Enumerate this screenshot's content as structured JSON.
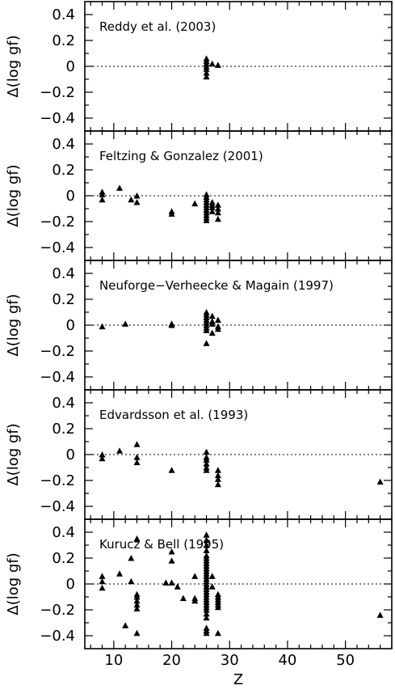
{
  "chart_data": [
    {
      "type": "scatter",
      "title": "Reddy et al. (2003)",
      "ylabel": "Δ(log gf)",
      "xlabel": "",
      "xlim": [
        5,
        58
      ],
      "ylim": [
        -0.5,
        0.5
      ],
      "yticks": [
        "0.4",
        "0.2",
        "0",
        "−0.2",
        "−0.4"
      ],
      "xticks": [],
      "zero_line": "dotted",
      "points": [
        [
          26,
          0.06
        ],
        [
          26,
          0.04
        ],
        [
          26,
          0.02
        ],
        [
          26,
          0.0
        ],
        [
          26,
          -0.02
        ],
        [
          26,
          -0.05
        ],
        [
          26,
          -0.08
        ],
        [
          27,
          0.02
        ],
        [
          28,
          0.01
        ]
      ]
    },
    {
      "type": "scatter",
      "title": "Feltzing & Gonzalez (2001)",
      "ylabel": "Δ(log gf)",
      "xlabel": "",
      "xlim": [
        5,
        58
      ],
      "ylim": [
        -0.5,
        0.5
      ],
      "yticks": [
        "0.4",
        "0.2",
        "0",
        "−0.2",
        "−0.4"
      ],
      "xticks": [],
      "zero_line": "dotted",
      "points": [
        [
          8,
          0.03
        ],
        [
          8,
          0.01
        ],
        [
          8,
          -0.03
        ],
        [
          11,
          0.06
        ],
        [
          13,
          -0.03
        ],
        [
          14,
          0.0
        ],
        [
          14,
          -0.05
        ],
        [
          20,
          -0.12
        ],
        [
          20,
          -0.14
        ],
        [
          24,
          -0.06
        ],
        [
          26,
          0.01
        ],
        [
          26,
          -0.01
        ],
        [
          26,
          -0.03
        ],
        [
          26,
          -0.05
        ],
        [
          26,
          -0.07
        ],
        [
          26,
          -0.09
        ],
        [
          26,
          -0.11
        ],
        [
          26,
          -0.13
        ],
        [
          26,
          -0.15
        ],
        [
          26,
          -0.17
        ],
        [
          26,
          -0.19
        ],
        [
          27,
          -0.05
        ],
        [
          27,
          -0.07
        ],
        [
          27,
          -0.09
        ],
        [
          27,
          -0.12
        ],
        [
          28,
          -0.07
        ],
        [
          28,
          -0.1
        ],
        [
          28,
          -0.13
        ],
        [
          28,
          -0.18
        ]
      ]
    },
    {
      "type": "scatter",
      "title": "Neuforge−Verheecke & Magain (1997)",
      "ylabel": "Δ(log gf)",
      "xlabel": "",
      "xlim": [
        5,
        58
      ],
      "ylim": [
        -0.5,
        0.5
      ],
      "yticks": [
        "0.4",
        "0.2",
        "0",
        "−0.2",
        "−0.4"
      ],
      "xticks": [],
      "zero_line": "dotted",
      "points": [
        [
          8,
          -0.01
        ],
        [
          12,
          0.01
        ],
        [
          20,
          0.01
        ],
        [
          20,
          0.0
        ],
        [
          26,
          0.1
        ],
        [
          26,
          0.08
        ],
        [
          26,
          0.06
        ],
        [
          26,
          0.04
        ],
        [
          26,
          0.02
        ],
        [
          26,
          0.0
        ],
        [
          26,
          -0.02
        ],
        [
          26,
          -0.04
        ],
        [
          26,
          -0.14
        ],
        [
          27,
          0.07
        ],
        [
          27,
          0.03
        ],
        [
          27,
          0.01
        ],
        [
          27,
          -0.06
        ],
        [
          28,
          0.04
        ],
        [
          28,
          -0.01
        ],
        [
          28,
          -0.03
        ]
      ]
    },
    {
      "type": "scatter",
      "title": "Edvardsson et al. (1993)",
      "ylabel": "Δ(log gf)",
      "xlabel": "",
      "xlim": [
        5,
        58
      ],
      "ylim": [
        -0.5,
        0.5
      ],
      "yticks": [
        "0.4",
        "0.2",
        "0",
        "−0.2",
        "−0.4"
      ],
      "xticks": [],
      "zero_line": "dotted",
      "points": [
        [
          8,
          0.0
        ],
        [
          8,
          -0.03
        ],
        [
          11,
          0.03
        ],
        [
          14,
          0.08
        ],
        [
          14,
          -0.02
        ],
        [
          14,
          -0.06
        ],
        [
          20,
          -0.12
        ],
        [
          26,
          0.02
        ],
        [
          26,
          -0.02
        ],
        [
          26,
          -0.04
        ],
        [
          26,
          -0.07
        ],
        [
          26,
          -0.1
        ],
        [
          26,
          -0.12
        ],
        [
          28,
          -0.12
        ],
        [
          28,
          -0.16
        ],
        [
          28,
          -0.19
        ],
        [
          28,
          -0.23
        ],
        [
          56,
          -0.21
        ]
      ]
    },
    {
      "type": "scatter",
      "title": "Kurucz & Bell (1995)",
      "ylabel": "Δ(log gf)",
      "xlabel": "Z",
      "xlim": [
        5,
        58
      ],
      "ylim": [
        -0.5,
        0.5
      ],
      "yticks": [
        "0.4",
        "0.2",
        "0",
        "−0.2",
        "−0.4"
      ],
      "xticks": [
        "10",
        "20",
        "30",
        "40",
        "50"
      ],
      "zero_line": "dotted",
      "points": [
        [
          8,
          0.06
        ],
        [
          8,
          0.02
        ],
        [
          8,
          -0.03
        ],
        [
          11,
          0.08
        ],
        [
          12,
          -0.32
        ],
        [
          13,
          0.2
        ],
        [
          13,
          0.02
        ],
        [
          14,
          0.35
        ],
        [
          14,
          -0.08
        ],
        [
          14,
          -0.1
        ],
        [
          14,
          -0.13
        ],
        [
          14,
          -0.16
        ],
        [
          14,
          -0.19
        ],
        [
          14,
          -0.38
        ],
        [
          19,
          0.01
        ],
        [
          20,
          0.25
        ],
        [
          20,
          0.18
        ],
        [
          20,
          0.01
        ],
        [
          21,
          -0.02
        ],
        [
          22,
          -0.11
        ],
        [
          24,
          0.06
        ],
        [
          24,
          -0.11
        ],
        [
          24,
          -0.13
        ],
        [
          26,
          0.38
        ],
        [
          26,
          0.34
        ],
        [
          26,
          0.3
        ],
        [
          26,
          0.26
        ],
        [
          26,
          0.22
        ],
        [
          26,
          0.2
        ],
        [
          26,
          0.18
        ],
        [
          26,
          0.16
        ],
        [
          26,
          0.14
        ],
        [
          26,
          0.12
        ],
        [
          26,
          0.1
        ],
        [
          26,
          0.08
        ],
        [
          26,
          0.06
        ],
        [
          26,
          0.04
        ],
        [
          26,
          0.02
        ],
        [
          26,
          0.0
        ],
        [
          26,
          -0.02
        ],
        [
          26,
          -0.04
        ],
        [
          26,
          -0.06
        ],
        [
          26,
          -0.08
        ],
        [
          26,
          -0.1
        ],
        [
          26,
          -0.12
        ],
        [
          26,
          -0.14
        ],
        [
          26,
          -0.16
        ],
        [
          26,
          -0.18
        ],
        [
          26,
          -0.2
        ],
        [
          26,
          -0.23
        ],
        [
          26,
          -0.26
        ],
        [
          26,
          -0.34
        ],
        [
          26,
          -0.36
        ],
        [
          26,
          -0.38
        ],
        [
          27,
          0.06
        ],
        [
          27,
          -0.02
        ],
        [
          28,
          -0.08
        ],
        [
          28,
          -0.1
        ],
        [
          28,
          -0.12
        ],
        [
          28,
          -0.14
        ],
        [
          28,
          -0.16
        ],
        [
          28,
          -0.18
        ],
        [
          28,
          -0.38
        ],
        [
          56,
          -0.24
        ]
      ]
    }
  ]
}
